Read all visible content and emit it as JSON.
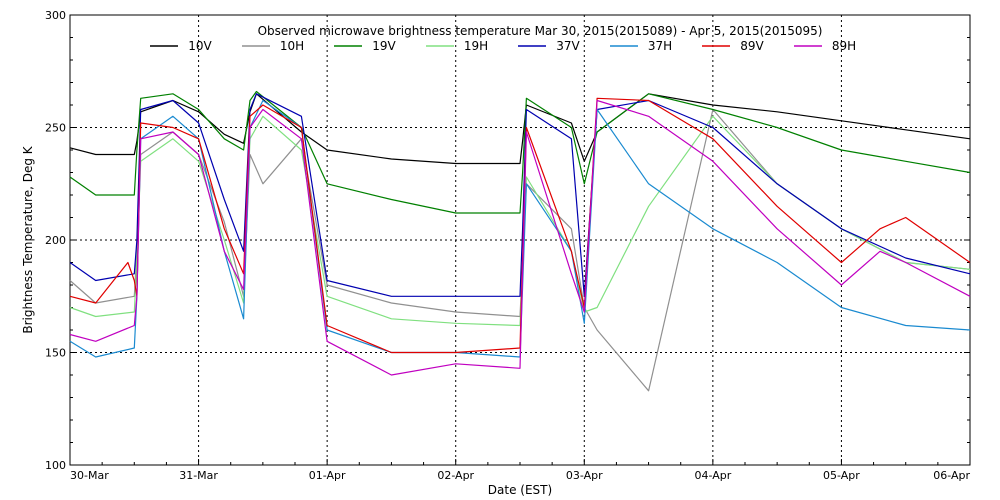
{
  "chart_data": {
    "type": "line",
    "title": "Observed microwave brightness temperature Mar 30, 2015(2015089) - Apr  5, 2015(2015095)",
    "xlabel": "Date (EST)",
    "ylabel": "Brightness Temperature, Deg K",
    "xlim": [
      0,
      7
    ],
    "ylim": [
      100,
      300
    ],
    "grid": true,
    "legend_position": "top",
    "x_ticks": [
      {
        "value": 0,
        "label": "30-Mar"
      },
      {
        "value": 1,
        "label": "31-Mar"
      },
      {
        "value": 2,
        "label": "01-Apr"
      },
      {
        "value": 3,
        "label": "02-Apr"
      },
      {
        "value": 4,
        "label": "03-Apr"
      },
      {
        "value": 5,
        "label": "04-Apr"
      },
      {
        "value": 6,
        "label": "05-Apr"
      },
      {
        "value": 7,
        "label": "06-Apr"
      }
    ],
    "y_ticks": [
      100,
      150,
      200,
      250,
      300
    ],
    "series": [
      {
        "name": "10V",
        "color": "#000000",
        "x": [
          0,
          0.2,
          0.5,
          0.52,
          0.55,
          0.8,
          1.0,
          1.2,
          1.35,
          1.4,
          1.45,
          1.8,
          2.0,
          2.5,
          3.0,
          3.5,
          3.52,
          3.55,
          3.9,
          4.0,
          4.1,
          4.5,
          5.0,
          5.5,
          6.0,
          6.5,
          7.0
        ],
        "y": [
          241,
          238,
          238,
          244,
          257,
          262,
          257,
          247,
          243,
          257,
          265,
          248,
          240,
          236,
          234,
          234,
          244,
          260,
          252,
          235,
          248,
          265,
          260,
          257,
          253,
          249,
          245
        ]
      },
      {
        "name": "10H",
        "color": "#909090",
        "x": [
          0,
          0.2,
          0.5,
          0.52,
          0.55,
          0.8,
          1.0,
          1.2,
          1.35,
          1.4,
          1.5,
          1.8,
          2.0,
          2.5,
          3.0,
          3.5,
          3.55,
          3.9,
          4.0,
          4.1,
          4.5,
          5.0,
          5.5,
          6.0,
          6.5,
          7.0
        ],
        "y": [
          182,
          172,
          175,
          195,
          238,
          248,
          238,
          208,
          175,
          238,
          225,
          245,
          180,
          172,
          168,
          166,
          225,
          205,
          170,
          160,
          133,
          258,
          225,
          205,
          190,
          187
        ]
      },
      {
        "name": "19V",
        "color": "#008000",
        "x": [
          0,
          0.2,
          0.5,
          0.52,
          0.55,
          0.8,
          1.0,
          1.2,
          1.35,
          1.4,
          1.45,
          1.8,
          2.0,
          2.5,
          3.0,
          3.5,
          3.52,
          3.55,
          3.9,
          4.0,
          4.1,
          4.5,
          5.0,
          5.5,
          6.0,
          6.5,
          7.0
        ],
        "y": [
          228,
          220,
          220,
          240,
          263,
          265,
          258,
          245,
          240,
          262,
          266,
          250,
          225,
          218,
          212,
          212,
          230,
          263,
          250,
          225,
          248,
          265,
          258,
          250,
          240,
          235,
          230
        ]
      },
      {
        "name": "19H",
        "color": "#80e080",
        "x": [
          0,
          0.2,
          0.5,
          0.52,
          0.55,
          0.8,
          1.0,
          1.2,
          1.35,
          1.4,
          1.5,
          1.8,
          2.0,
          2.5,
          3.0,
          3.5,
          3.55,
          3.9,
          4.0,
          4.1,
          4.5,
          5.0,
          5.5,
          6.0,
          6.5,
          7.0
        ],
        "y": [
          170,
          166,
          168,
          190,
          235,
          245,
          235,
          200,
          172,
          245,
          255,
          240,
          175,
          165,
          163,
          162,
          228,
          195,
          168,
          170,
          215,
          255,
          225,
          205,
          190,
          187
        ]
      },
      {
        "name": "37V",
        "color": "#0000b0",
        "x": [
          0,
          0.2,
          0.5,
          0.52,
          0.55,
          0.8,
          1.0,
          1.2,
          1.35,
          1.4,
          1.45,
          1.8,
          2.0,
          2.5,
          3.0,
          3.5,
          3.52,
          3.55,
          3.9,
          4.0,
          4.1,
          4.5,
          5.0,
          5.5,
          6.0,
          6.5,
          7.0
        ],
        "y": [
          190,
          182,
          185,
          200,
          258,
          262,
          252,
          218,
          195,
          258,
          265,
          255,
          182,
          175,
          175,
          175,
          205,
          258,
          245,
          175,
          258,
          262,
          250,
          225,
          205,
          192,
          185
        ]
      },
      {
        "name": "37H",
        "color": "#1a8ad0",
        "x": [
          0,
          0.2,
          0.5,
          0.52,
          0.55,
          0.8,
          1.0,
          1.2,
          1.35,
          1.4,
          1.5,
          1.8,
          2.0,
          2.5,
          3.0,
          3.5,
          3.55,
          3.9,
          4.0,
          4.1,
          4.5,
          5.0,
          5.5,
          6.0,
          6.5,
          7.0
        ],
        "y": [
          155,
          148,
          152,
          175,
          245,
          255,
          245,
          195,
          165,
          250,
          262,
          250,
          160,
          150,
          150,
          148,
          225,
          195,
          163,
          258,
          225,
          205,
          190,
          170,
          162,
          160
        ]
      },
      {
        "name": "89V",
        "color": "#e00000",
        "x": [
          0,
          0.2,
          0.45,
          0.5,
          0.52,
          0.55,
          0.8,
          1.0,
          1.2,
          1.35,
          1.4,
          1.5,
          1.8,
          2.0,
          2.5,
          3.0,
          3.5,
          3.55,
          3.9,
          4.0,
          4.1,
          4.5,
          5.0,
          5.5,
          6.0,
          6.3,
          6.5,
          7.0
        ],
        "y": [
          175,
          172,
          190,
          182,
          175,
          252,
          250,
          245,
          205,
          185,
          255,
          260,
          250,
          162,
          150,
          150,
          152,
          250,
          195,
          170,
          263,
          262,
          245,
          215,
          190,
          205,
          210,
          190
        ]
      },
      {
        "name": "89H",
        "color": "#c000c0",
        "x": [
          0,
          0.2,
          0.5,
          0.52,
          0.55,
          0.8,
          1.0,
          1.2,
          1.35,
          1.4,
          1.5,
          1.8,
          2.0,
          2.5,
          3.0,
          3.5,
          3.55,
          3.9,
          4.0,
          4.1,
          4.5,
          5.0,
          5.5,
          6.0,
          6.3,
          6.5,
          7.0
        ],
        "y": [
          158,
          155,
          162,
          175,
          245,
          248,
          238,
          195,
          178,
          250,
          258,
          245,
          155,
          140,
          145,
          143,
          248,
          185,
          168,
          262,
          255,
          235,
          205,
          180,
          195,
          190,
          175
        ]
      }
    ]
  }
}
